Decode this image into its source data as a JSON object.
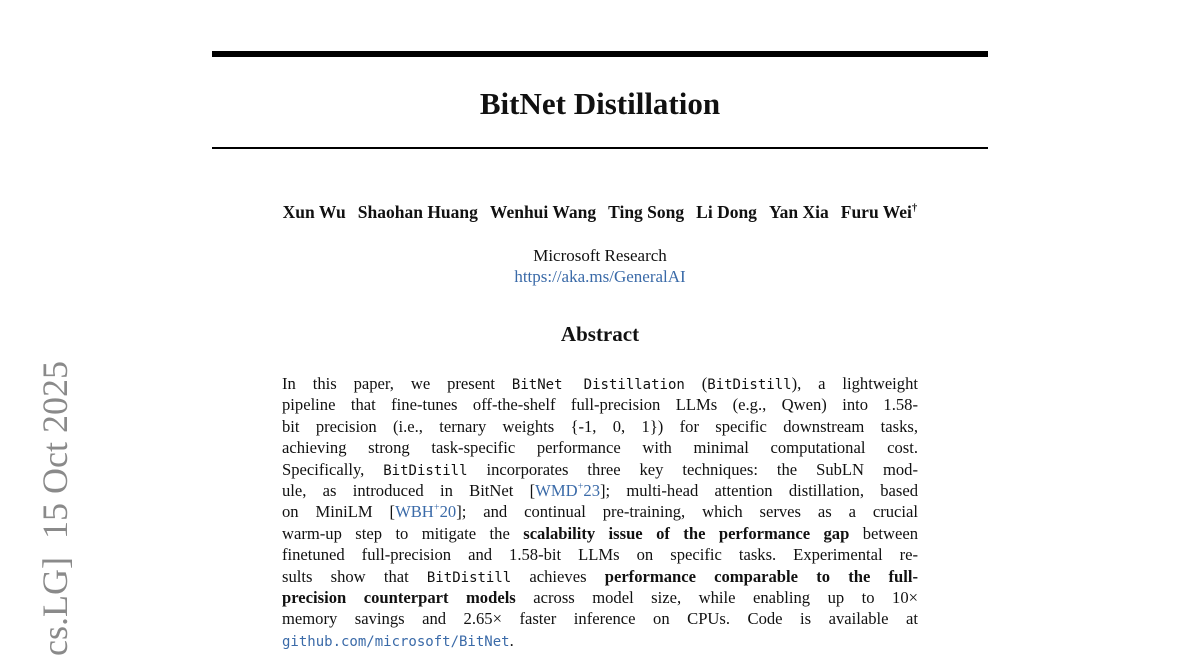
{
  "side_stamp": {
    "category": "cs.LG]",
    "date": "15 Oct 2025"
  },
  "header": {
    "title": "BitNet Distillation",
    "authors": [
      "Xun Wu",
      "Shaohan Huang",
      "Wenhui Wang",
      "Ting Song",
      "Li Dong",
      "Yan Xia",
      "Furu Wei"
    ],
    "author_mark": "†",
    "affiliation": "Microsoft Research",
    "url": "https://aka.ms/GeneralAI"
  },
  "abstract": {
    "heading": "Abstract",
    "lines": [
      [
        "In this paper, we present ",
        "BitNet Distillation",
        " (",
        "BitDistill",
        "), a lightweight"
      ],
      [
        "pipeline that fine-tunes off-the-shelf full-precision LLMs (e.g., Qwen) into 1.58-"
      ],
      [
        "bit precision (i.e., ternary weights {-1, 0, 1}) for specific downstream tasks,"
      ],
      [
        "achieving strong task-specific performance with minimal computational cost."
      ],
      [
        "Specifically, ",
        "BitDistill",
        " incorporates three key techniques: the SubLN mod-"
      ],
      [
        "ule, as introduced in BitNet [",
        "WMD",
        "+",
        "23",
        "]; multi-head attention distillation, based"
      ],
      [
        "on MiniLM [",
        "WBH",
        "+",
        "20",
        "]; and continual pre-training, which serves as a crucial"
      ],
      [
        "warm-up step to mitigate the ",
        "scalability issue of the performance gap",
        " between"
      ],
      [
        "finetuned full-precision and 1.58-bit LLMs on specific tasks.  Experimental re-"
      ],
      [
        "sults show that ",
        "BitDistill",
        " achieves ",
        "performance comparable to the full-"
      ],
      [
        "precision counterpart models",
        " across model size, while enabling up to 10×"
      ],
      [
        "memory savings and 2.65× faster inference on CPUs.  Code is available at"
      ],
      [
        "github.com/microsoft/BitNet",
        "."
      ]
    ]
  }
}
